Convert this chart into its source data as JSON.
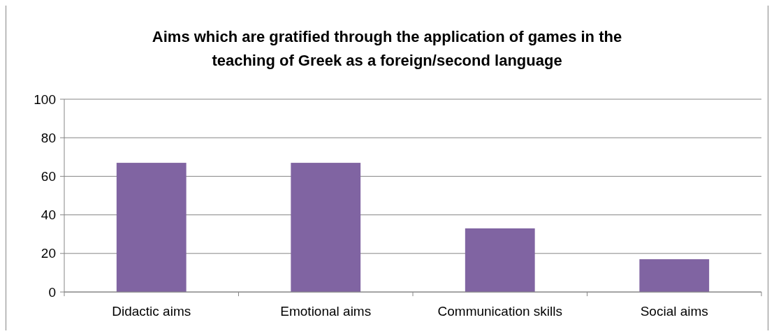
{
  "chart_data": {
    "type": "bar",
    "title": "Aims which are gratified through the application of games in the teaching of Greek as a foreign/second language",
    "categories": [
      "Didactic aims",
      "Emotional aims",
      "Communication skills",
      "Social aims"
    ],
    "values": [
      67,
      67,
      33,
      17
    ],
    "color": "#8064a2",
    "ylim": [
      0,
      100
    ],
    "yticks": [
      0,
      20,
      40,
      60,
      80,
      100
    ],
    "grid": "y"
  }
}
